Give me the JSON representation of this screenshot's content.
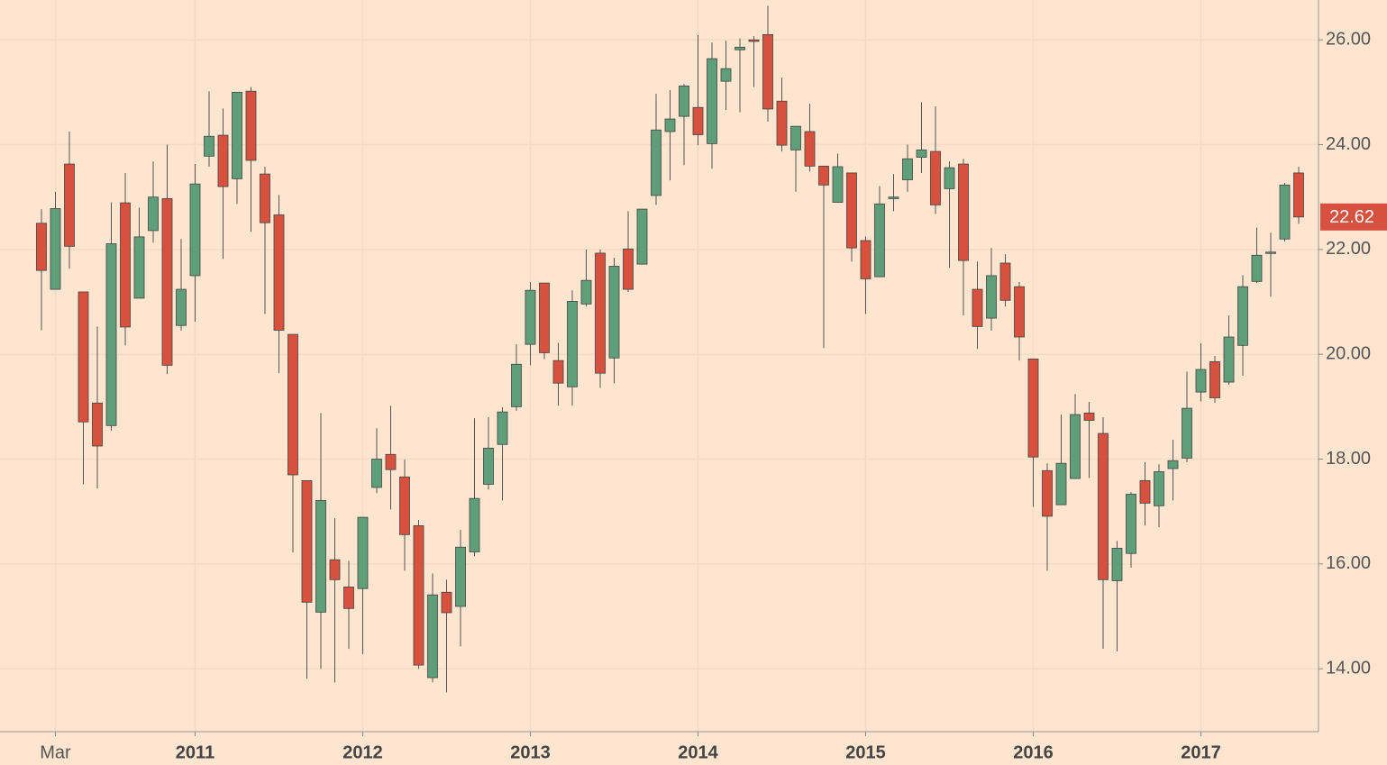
{
  "chart_data": {
    "type": "candlestick",
    "categories": [
      null,
      "Mar",
      null,
      null,
      null,
      null,
      null,
      null,
      null,
      null,
      null,
      "2011",
      null,
      null,
      null,
      null,
      null,
      null,
      null,
      null,
      null,
      null,
      null,
      "2012",
      null,
      null,
      null,
      null,
      null,
      null,
      null,
      null,
      null,
      null,
      null,
      "2013",
      null,
      null,
      null,
      null,
      null,
      null,
      null,
      null,
      null,
      null,
      null,
      "2014",
      null,
      null,
      null,
      null,
      null,
      null,
      null,
      null,
      null,
      null,
      null,
      "2015",
      null,
      null,
      null,
      null,
      null,
      null,
      null,
      null,
      null,
      null,
      null,
      "2016",
      null,
      null,
      null,
      null,
      null,
      null,
      null,
      null,
      null,
      null,
      null,
      "2017",
      null,
      null,
      null,
      null,
      null,
      null,
      null
    ],
    "open": [
      22.5,
      21.24,
      23.63,
      21.19,
      19.07,
      18.64,
      22.89,
      21.07,
      22.36,
      22.97,
      20.55,
      21.5,
      23.78,
      24.18,
      23.35,
      25.02,
      23.44,
      22.66,
      20.38,
      17.59,
      15.08,
      16.08,
      15.56,
      15.53,
      17.46,
      18.09,
      17.66,
      16.73,
      13.83,
      15.46,
      15.19,
      16.23,
      17.52,
      18.28,
      19.0,
      20.19,
      21.36,
      19.88,
      19.38,
      20.96,
      21.93,
      19.93,
      22.01,
      21.72,
      23.03,
      24.25,
      24.54,
      24.71,
      24.02,
      25.21,
      25.81,
      26.0,
      26.1,
      24.83,
      23.9,
      24.25,
      23.59,
      22.9,
      23.46,
      22.17,
      21.48,
      22.97,
      23.33,
      23.76,
      23.87,
      23.16,
      23.63,
      21.24,
      20.69,
      21.74,
      21.29,
      19.91,
      17.78,
      17.13,
      17.63,
      18.88,
      18.49,
      15.68,
      16.2,
      17.59,
      17.11,
      17.82,
      18.02,
      19.28,
      19.86,
      19.47,
      20.17,
      21.39,
      21.93,
      22.2,
      23.46
    ],
    "high": [
      22.77,
      23.1,
      24.25,
      21.19,
      20.53,
      22.9,
      23.46,
      22.8,
      23.68,
      24.0,
      22.2,
      23.63,
      25.02,
      24.69,
      25.0,
      25.1,
      23.58,
      23.04,
      20.38,
      17.59,
      18.88,
      16.87,
      16.06,
      16.89,
      18.59,
      19.02,
      17.99,
      16.84,
      15.82,
      15.7,
      16.65,
      18.78,
      18.8,
      18.99,
      20.19,
      21.38,
      21.36,
      20.22,
      21.22,
      22.0,
      22.0,
      21.84,
      22.73,
      22.77,
      24.97,
      25.04,
      25.16,
      26.09,
      25.95,
      25.98,
      26.03,
      26.07,
      26.65,
      25.28,
      24.35,
      24.78,
      23.59,
      23.83,
      23.46,
      22.25,
      23.21,
      23.44,
      24.0,
      24.81,
      24.73,
      23.68,
      23.73,
      21.77,
      22.03,
      21.91,
      21.38,
      19.91,
      17.92,
      18.85,
      19.24,
      19.09,
      18.8,
      16.44,
      17.37,
      17.94,
      17.9,
      18.37,
      19.67,
      20.21,
      19.97,
      20.74,
      21.51,
      22.42,
      22.32,
      23.27,
      23.58
    ],
    "low": [
      20.46,
      21.24,
      21.63,
      17.52,
      17.44,
      18.54,
      20.17,
      21.07,
      22.13,
      19.62,
      20.45,
      20.62,
      23.58,
      21.82,
      22.87,
      22.34,
      20.77,
      19.64,
      16.22,
      13.81,
      14.0,
      13.74,
      14.38,
      14.28,
      17.35,
      17.04,
      15.87,
      14.0,
      13.74,
      13.55,
      14.43,
      16.15,
      17.42,
      17.21,
      18.92,
      19.79,
      19.91,
      19.02,
      19.02,
      20.91,
      19.36,
      19.45,
      21.19,
      21.72,
      22.85,
      23.32,
      23.61,
      23.99,
      23.54,
      24.66,
      24.62,
      25.1,
      24.44,
      23.87,
      23.1,
      23.49,
      20.12,
      22.9,
      21.77,
      20.77,
      21.48,
      22.73,
      23.1,
      23.46,
      22.68,
      21.65,
      20.74,
      20.1,
      20.45,
      20.91,
      19.88,
      17.09,
      15.87,
      17.13,
      17.63,
      17.64,
      14.38,
      14.33,
      15.93,
      16.73,
      16.7,
      17.21,
      17.94,
      19.1,
      19.07,
      19.42,
      19.59,
      21.36,
      21.1,
      22.15,
      22.49
    ],
    "close": [
      21.6,
      22.78,
      22.06,
      18.71,
      18.25,
      22.11,
      20.52,
      22.24,
      23.0,
      19.79,
      21.24,
      23.25,
      24.16,
      23.2,
      25.0,
      23.7,
      22.51,
      20.46,
      17.7,
      15.27,
      17.21,
      15.7,
      15.15,
      16.89,
      18.0,
      17.8,
      16.56,
      14.07,
      15.41,
      15.07,
      16.32,
      17.25,
      18.21,
      18.9,
      19.81,
      21.22,
      20.03,
      19.45,
      21.01,
      21.41,
      19.64,
      21.68,
      21.24,
      22.77,
      24.28,
      24.49,
      25.12,
      24.19,
      25.64,
      25.45,
      25.86,
      25.97,
      24.68,
      23.99,
      24.35,
      23.59,
      23.23,
      23.58,
      22.03,
      21.44,
      22.87,
      23.0,
      23.73,
      23.9,
      22.85,
      23.56,
      21.79,
      20.53,
      21.5,
      21.03,
      20.33,
      18.04,
      16.91,
      17.92,
      18.85,
      18.74,
      15.7,
      16.3,
      17.33,
      17.16,
      17.76,
      17.97,
      18.97,
      19.71,
      19.17,
      20.33,
      21.29,
      21.89,
      21.95,
      23.23,
      22.62
    ],
    "last_label": "22.62",
    "up_color": "#5e9e78",
    "down_color": "#d8503e",
    "ylim": [
      12.8,
      26.76
    ],
    "yticks": [
      {
        "value": 14,
        "label": "14.00"
      },
      {
        "value": 16,
        "label": "16.00"
      },
      {
        "value": 18,
        "label": "18.00"
      },
      {
        "value": 20,
        "label": "20.00"
      },
      {
        "value": 22,
        "label": "22.00"
      },
      {
        "value": 24,
        "label": "24.00"
      },
      {
        "value": 26,
        "label": "26.00"
      }
    ],
    "grid": true
  }
}
